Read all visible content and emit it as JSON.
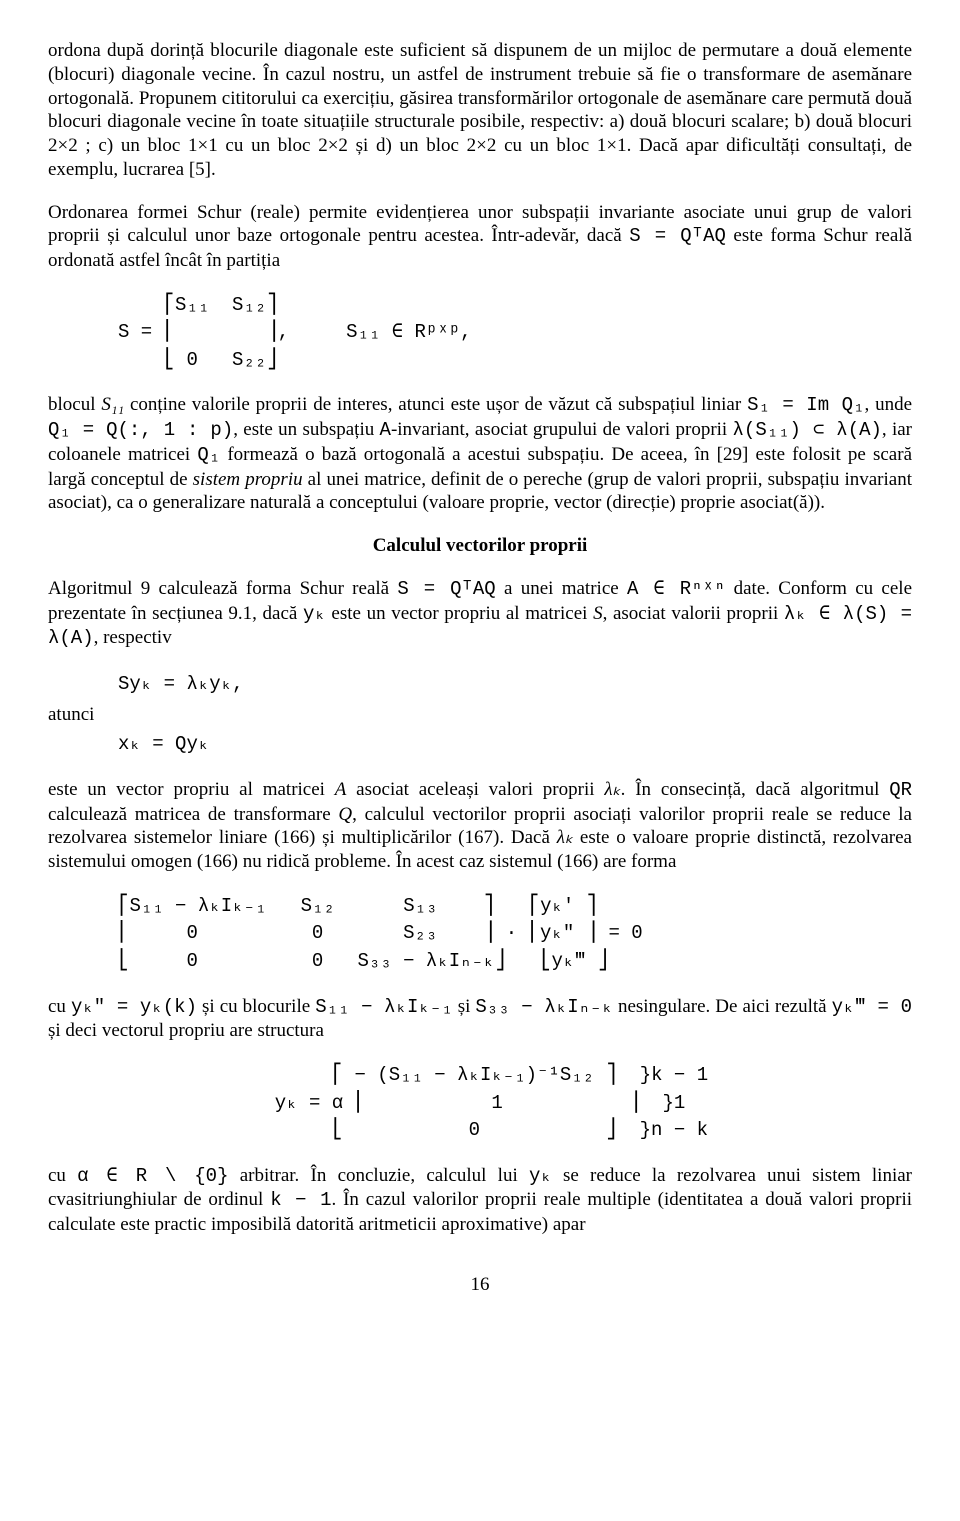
{
  "para1": "ordona după dorință blocurile diagonale este suficient să dispunem de un mijloc de permutare a două elemente (blocuri) diagonale vecine. În cazul nostru, un astfel de instrument trebuie să fie o transformare de asemănare ortogonală. Propunem cititorului ca exercițiu, găsirea transformărilor ortogonale de asemănare care permută două blocuri diagonale vecine în toate situațiile structurale posibile, respectiv: a) două blocuri scalare; b) două blocuri 2×2 ; c) un bloc 1×1 cu un bloc 2×2 și d) un bloc 2×2 cu un bloc 1×1. Dacă apar dificultăți consultați, de exemplu, lucrarea [5].",
  "para2_a": "Ordonarea formei Schur (reale) permite evidențierea unor subspații invariante asociate unui grup de valori proprii și calculul unor baze ortogonale pentru acestea. Într-adevăr, dacă ",
  "para2_eq": "S = QᵀAQ",
  "para2_b": " este forma Schur reală ordonată astfel încât în partiția",
  "matrix1": "    ⎡S₁₁  S₁₂⎤\nS = ⎢        ⎥,     S₁₁ ∈ Rᵖˣᵖ,\n    ⎣ 0   S₂₂⎦",
  "para3_a": "blocul ",
  "para3_s11": "S₁₁",
  "para3_b": " conține valorile proprii de interes, atunci este ușor de văzut că subspațiul liniar ",
  "para3_eq1": "S₁ = Im Q₁",
  "para3_c": ", unde ",
  "para3_eq2": "Q₁ = Q(:, 1 : p)",
  "para3_d": ", este un subspațiu ",
  "para3_A": "A",
  "para3_e": "-invariant, asociat grupului de valori proprii ",
  "para3_eq3": "λ(S₁₁) ⊂ λ(A)",
  "para3_f": ", iar coloanele matricei ",
  "para3_Q1": "Q₁",
  "para3_g": " formează o bază ortogonală a acestui subspațiu. De aceea, în [29] este folosit pe scară largă conceptul de ",
  "para3_it": "sistem propriu",
  "para3_h": " al unei matrice, definit de o pereche (grup de valori proprii, subspațiu invariant asociat), ca o generalizare naturală a conceptului (valoare proprie, vector (direcție) proprie asociat(ă)).",
  "heading1": "Calculul vectorilor proprii",
  "para4_a": "Algoritmul 9 calculează forma Schur reală ",
  "para4_eq1": "S = QᵀAQ",
  "para4_b": " a unei matrice ",
  "para4_eq2": "A ∈ Rⁿˣⁿ",
  "para4_c": " date. Conform cu cele prezentate în secțiunea 9.1, dacă ",
  "para4_yk": "yₖ",
  "para4_d": " este un vector propriu al matricei ",
  "para4_S": "S",
  "para4_e": ", asociat valorii proprii ",
  "para4_eq3": "λₖ ∈ λ(S) = λ(A)",
  "para4_f": ", respectiv",
  "eq1": "Syₖ = λₖyₖ,",
  "para5": "atunci",
  "eq2": "xₖ = Qyₖ",
  "para6_a": "este un vector propriu al matricei ",
  "para6_A": "A",
  "para6_b": " asociat aceleași valori proprii ",
  "para6_lk": "λₖ",
  "para6_c": ". În consecință, dacă algoritmul ",
  "para6_QR": "QR",
  "para6_d": " calculează matricea de transformare ",
  "para6_Q": "Q",
  "para6_e": ", calculul vectorilor proprii asociați valorilor proprii reale se reduce la rezolvarea sistemelor liniare (166) și multiplicărilor (167). Dacă ",
  "para6_lk2": "λₖ",
  "para6_f": " este o valoare proprie distinctă, rezolvarea sistemului omogen (166) nu ridică probleme. În acest caz sistemul (166) are forma",
  "matrix2": "⎡S₁₁ − λₖIₖ₋₁   S₁₂      S₁₃    ⎤   ⎡yₖ′ ⎤\n⎢     0          0       S₂₃    ⎥ · ⎢yₖ″ ⎥ = 0\n⎣     0          0   S₃₃ − λₖIₙ₋ₖ⎦   ⎣yₖ‴ ⎦",
  "para7_a": "cu ",
  "para7_eq1": "yₖ″ = yₖ(k)",
  "para7_b": " și cu blocurile ",
  "para7_eq2": "S₁₁ − λₖIₖ₋₁",
  "para7_c": " și ",
  "para7_eq3": "S₃₃ − λₖIₙ₋ₖ",
  "para7_d": " nesingulare. De aici rezultă ",
  "para7_eq4": "yₖ‴ = 0",
  "para7_e": " și deci vectorul propriu are structura",
  "matrix3": "       ⎡ − (S₁₁ − λₖIₖ₋₁)⁻¹S₁₂ ⎤  }k − 1\nyₖ = α ⎢           1           ⎥  }1\n       ⎣           0           ⎦  }n − k",
  "para8_a": "cu ",
  "para8_eq1": "α ∈ R \\ {0}",
  "para8_b": " arbitrar. În concluzie, calculul lui ",
  "para8_yk": "yₖ",
  "para8_c": " se reduce la rezolvarea unui sistem liniar cvasitriunghiular de ordinul ",
  "para8_eq2": "k − 1",
  "para8_d": ". În cazul valorilor proprii reale multiple (identitatea a două valori proprii calculate este practic imposibilă datorită aritmeticii aproximative) apar",
  "page_number": "16"
}
